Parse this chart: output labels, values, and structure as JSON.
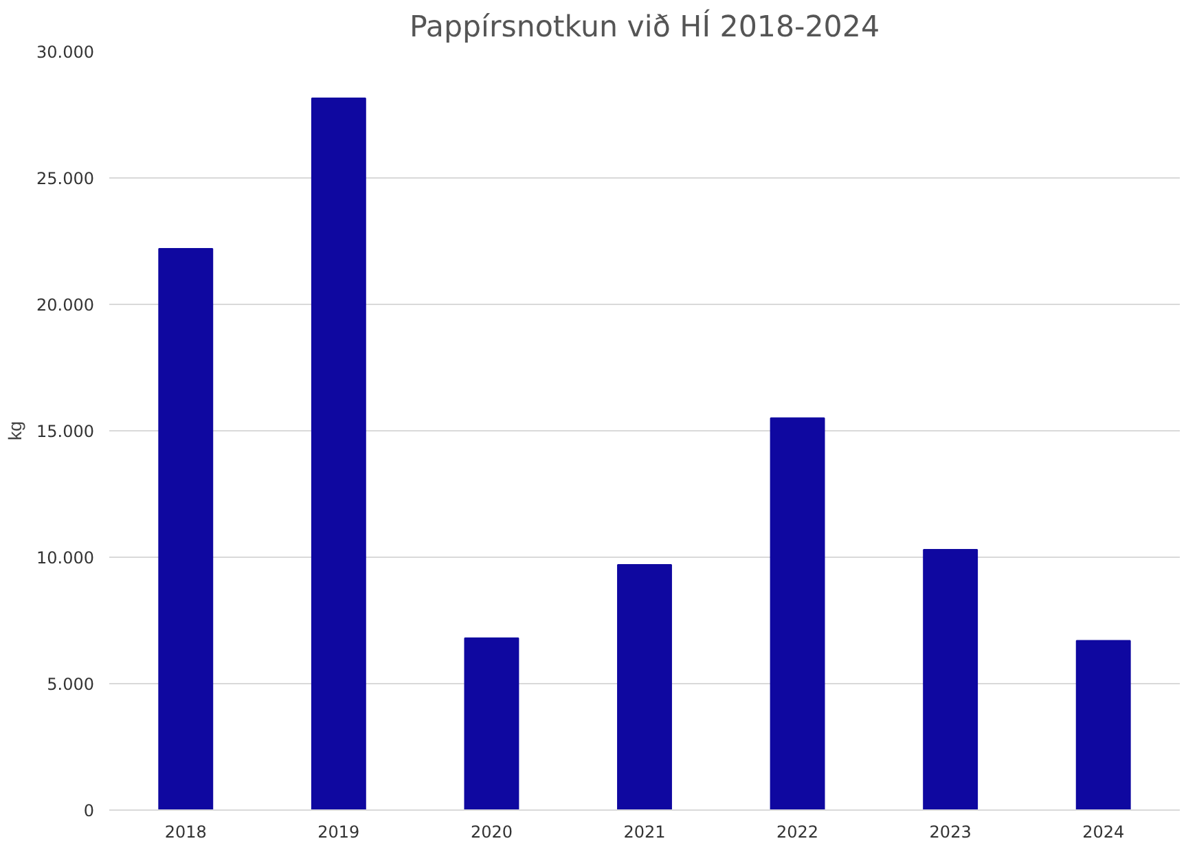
{
  "chart_data": {
    "type": "bar",
    "title": "Pappírsnotkun við HÍ 2018-2024",
    "ylabel": "kg",
    "categories": [
      "2018",
      "2019",
      "2020",
      "2021",
      "2022",
      "2023",
      "2024"
    ],
    "values": [
      22200,
      28150,
      6800,
      9700,
      15500,
      10300,
      6700
    ],
    "color": "#0f08a0",
    "ylim": [
      0,
      30000
    ],
    "yticks": [
      {
        "value": 0,
        "label": "0"
      },
      {
        "value": 5000,
        "label": "5.000"
      },
      {
        "value": 10000,
        "label": "10.000"
      },
      {
        "value": 15000,
        "label": "15.000"
      },
      {
        "value": 20000,
        "label": "20.000"
      },
      {
        "value": 25000,
        "label": "25.000"
      },
      {
        "value": 30000,
        "label": "30.000"
      }
    ],
    "grid": "y"
  }
}
